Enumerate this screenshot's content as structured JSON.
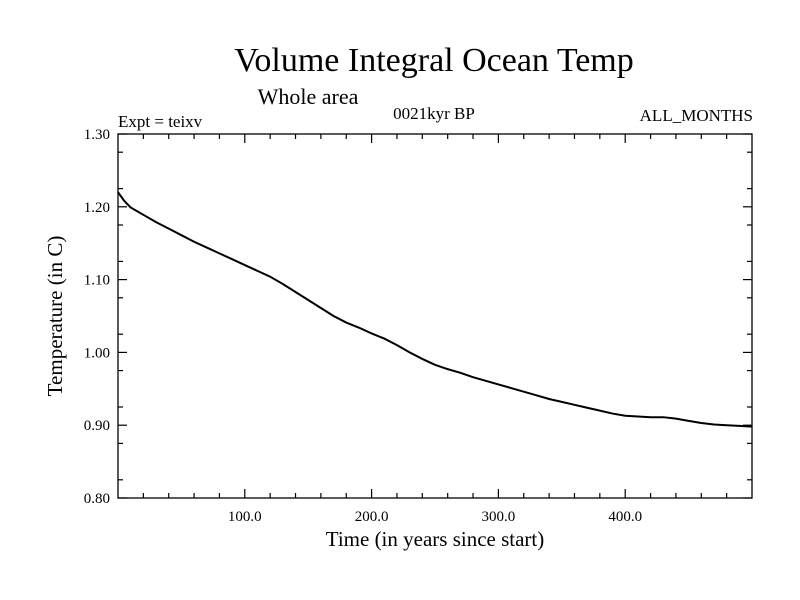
{
  "chart_data": {
    "type": "line",
    "title": "Volume Integral Ocean Temp",
    "subtitle": "Whole area",
    "expt_label": "Expt = teixv",
    "period_label": "0021kyr BP",
    "months_label": "ALL_MONTHS",
    "xlabel": "Time (in years since start)",
    "ylabel": "Temperature (in C)",
    "xlim": [
      0,
      500
    ],
    "ylim": [
      0.8,
      1.3
    ],
    "xticks": [
      100,
      200,
      300,
      400
    ],
    "xtick_labels": [
      "100.0",
      "200.0",
      "300.0",
      "400.0"
    ],
    "yticks": [
      0.8,
      0.9,
      1.0,
      1.1,
      1.2,
      1.3
    ],
    "ytick_labels": [
      "0.80",
      "0.90",
      "1.00",
      "1.10",
      "1.20",
      "1.30"
    ],
    "grid": false,
    "series": [
      {
        "color": "#000000",
        "x": [
          0,
          5,
          10,
          20,
          30,
          40,
          50,
          60,
          70,
          80,
          90,
          100,
          110,
          120,
          130,
          140,
          150,
          160,
          170,
          180,
          190,
          200,
          210,
          220,
          230,
          240,
          250,
          260,
          270,
          280,
          290,
          300,
          310,
          320,
          330,
          340,
          350,
          360,
          370,
          380,
          390,
          400,
          410,
          420,
          430,
          440,
          450,
          460,
          470,
          480,
          490,
          500
        ],
        "y": [
          1.22,
          1.208,
          1.199,
          1.189,
          1.179,
          1.17,
          1.161,
          1.152,
          1.144,
          1.136,
          1.128,
          1.12,
          1.112,
          1.104,
          1.094,
          1.083,
          1.072,
          1.061,
          1.05,
          1.041,
          1.034,
          1.026,
          1.019,
          1.01,
          1.0,
          0.991,
          0.983,
          0.977,
          0.972,
          0.966,
          0.961,
          0.956,
          0.951,
          0.946,
          0.941,
          0.936,
          0.932,
          0.928,
          0.924,
          0.92,
          0.916,
          0.913,
          0.912,
          0.911,
          0.911,
          0.909,
          0.906,
          0.903,
          0.901,
          0.9,
          0.899,
          0.898
        ]
      }
    ]
  }
}
